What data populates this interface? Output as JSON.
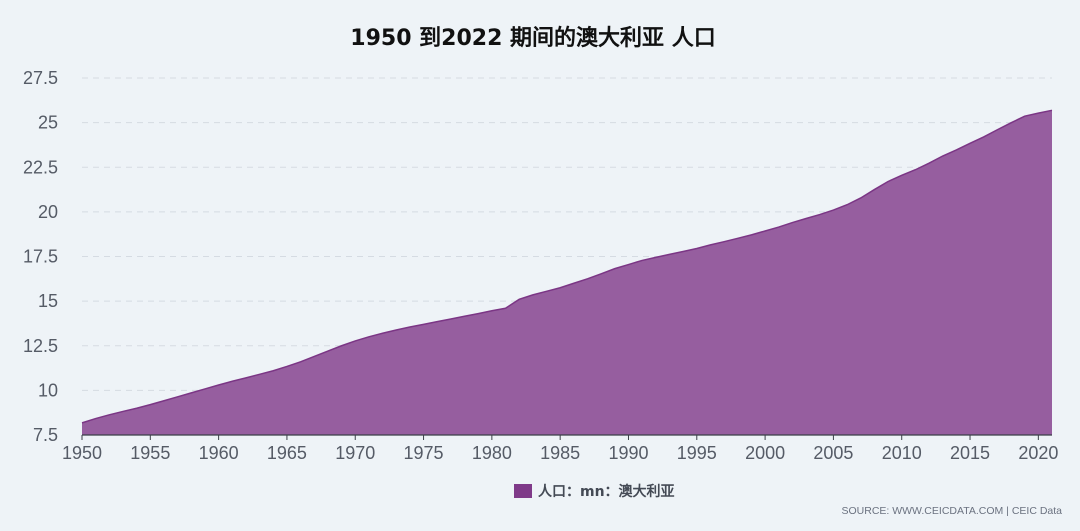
{
  "chart_data": {
    "type": "area",
    "title": "1950 到2022 期间的澳大利亚 人口",
    "xlabel": "",
    "ylabel": "",
    "x": [
      1950,
      1951,
      1952,
      1953,
      1954,
      1955,
      1956,
      1957,
      1958,
      1959,
      1960,
      1961,
      1962,
      1963,
      1964,
      1965,
      1966,
      1967,
      1968,
      1969,
      1970,
      1971,
      1972,
      1973,
      1974,
      1975,
      1976,
      1977,
      1978,
      1979,
      1980,
      1981,
      1982,
      1983,
      1984,
      1985,
      1986,
      1987,
      1988,
      1989,
      1990,
      1991,
      1992,
      1993,
      1994,
      1995,
      1996,
      1997,
      1998,
      1999,
      2000,
      2001,
      2002,
      2003,
      2004,
      2005,
      2006,
      2007,
      2008,
      2009,
      2010,
      2011,
      2012,
      2013,
      2014,
      2015,
      2016,
      2017,
      2018,
      2019,
      2020,
      2021
    ],
    "series": [
      {
        "name": "人口：mn：澳大利亚",
        "values": [
          8.18,
          8.42,
          8.63,
          8.82,
          9.0,
          9.2,
          9.42,
          9.64,
          9.86,
          10.08,
          10.3,
          10.51,
          10.7,
          10.9,
          11.1,
          11.34,
          11.6,
          11.9,
          12.2,
          12.5,
          12.77,
          13.0,
          13.2,
          13.38,
          13.55,
          13.7,
          13.85,
          14.0,
          14.15,
          14.3,
          14.46,
          14.6,
          15.1,
          15.35,
          15.55,
          15.75,
          16.0,
          16.25,
          16.53,
          16.82,
          17.05,
          17.28,
          17.45,
          17.62,
          17.78,
          17.95,
          18.15,
          18.33,
          18.52,
          18.71,
          18.93,
          19.15,
          19.4,
          19.63,
          19.85,
          20.1,
          20.4,
          20.78,
          21.25,
          21.7,
          22.05,
          22.36,
          22.73,
          23.13,
          23.47,
          23.84,
          24.2,
          24.6,
          24.99,
          25.36,
          25.53,
          25.69
        ]
      }
    ],
    "xlim": [
      1950,
      2021
    ],
    "ylim": [
      7.5,
      27.5
    ],
    "x_ticks": [
      "1950",
      "1955",
      "1960",
      "1965",
      "1970",
      "1975",
      "1980",
      "1985",
      "1990",
      "1995",
      "2000",
      "2005",
      "2010",
      "2015",
      "2020"
    ],
    "y_ticks": [
      "7.5",
      "10",
      "12.5",
      "15",
      "17.5",
      "20",
      "22.5",
      "25",
      "27.5"
    ],
    "grid": "horizontal-dashed",
    "legend": "bottom-center",
    "colors": {
      "fill": "#965e9f",
      "line": "#7b3685",
      "legend_swatch": "#7f3a89",
      "grid": "#d5dbe2",
      "axis": "#3a3f47"
    },
    "source": "SOURCE: WWW.CEICDATA.COM | CEIC Data"
  }
}
